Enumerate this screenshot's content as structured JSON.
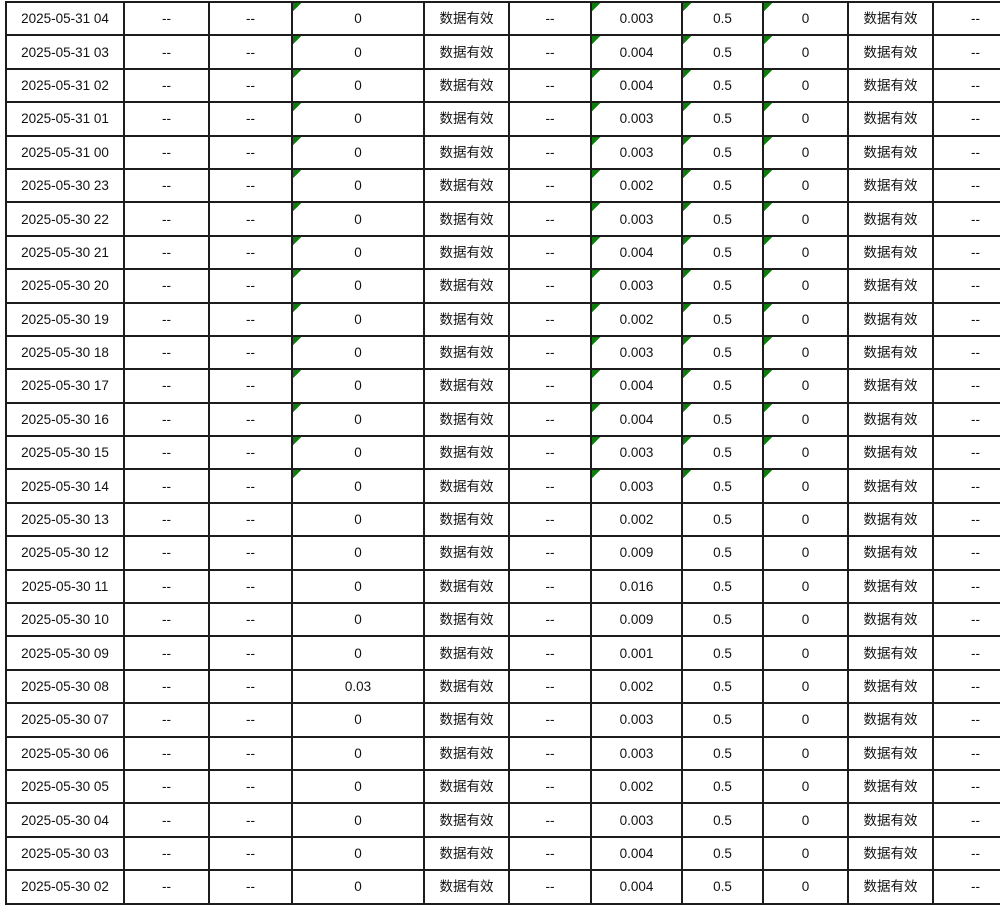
{
  "table": {
    "status_valid_label": "数据有效",
    "empty_placeholder": "--",
    "flag_color": "#0e7d0e",
    "border_color": "#1c1c1c",
    "marked_columns": [
      3,
      6,
      7,
      8
    ],
    "rows": [
      {
        "marked": true,
        "cells": [
          "2025-05-31 04",
          "--",
          "--",
          "0",
          "数据有效",
          "--",
          "0.003",
          "0.5",
          "0",
          "数据有效",
          "--"
        ]
      },
      {
        "marked": true,
        "cells": [
          "2025-05-31 03",
          "--",
          "--",
          "0",
          "数据有效",
          "--",
          "0.004",
          "0.5",
          "0",
          "数据有效",
          "--"
        ]
      },
      {
        "marked": true,
        "cells": [
          "2025-05-31 02",
          "--",
          "--",
          "0",
          "数据有效",
          "--",
          "0.004",
          "0.5",
          "0",
          "数据有效",
          "--"
        ]
      },
      {
        "marked": true,
        "cells": [
          "2025-05-31 01",
          "--",
          "--",
          "0",
          "数据有效",
          "--",
          "0.003",
          "0.5",
          "0",
          "数据有效",
          "--"
        ]
      },
      {
        "marked": true,
        "cells": [
          "2025-05-31 00",
          "--",
          "--",
          "0",
          "数据有效",
          "--",
          "0.003",
          "0.5",
          "0",
          "数据有效",
          "--"
        ]
      },
      {
        "marked": true,
        "cells": [
          "2025-05-30 23",
          "--",
          "--",
          "0",
          "数据有效",
          "--",
          "0.002",
          "0.5",
          "0",
          "数据有效",
          "--"
        ]
      },
      {
        "marked": true,
        "cells": [
          "2025-05-30 22",
          "--",
          "--",
          "0",
          "数据有效",
          "--",
          "0.003",
          "0.5",
          "0",
          "数据有效",
          "--"
        ]
      },
      {
        "marked": true,
        "cells": [
          "2025-05-30 21",
          "--",
          "--",
          "0",
          "数据有效",
          "--",
          "0.004",
          "0.5",
          "0",
          "数据有效",
          "--"
        ]
      },
      {
        "marked": true,
        "cells": [
          "2025-05-30 20",
          "--",
          "--",
          "0",
          "数据有效",
          "--",
          "0.003",
          "0.5",
          "0",
          "数据有效",
          "--"
        ]
      },
      {
        "marked": true,
        "cells": [
          "2025-05-30 19",
          "--",
          "--",
          "0",
          "数据有效",
          "--",
          "0.002",
          "0.5",
          "0",
          "数据有效",
          "--"
        ]
      },
      {
        "marked": true,
        "cells": [
          "2025-05-30 18",
          "--",
          "--",
          "0",
          "数据有效",
          "--",
          "0.003",
          "0.5",
          "0",
          "数据有效",
          "--"
        ]
      },
      {
        "marked": true,
        "cells": [
          "2025-05-30 17",
          "--",
          "--",
          "0",
          "数据有效",
          "--",
          "0.004",
          "0.5",
          "0",
          "数据有效",
          "--"
        ]
      },
      {
        "marked": true,
        "cells": [
          "2025-05-30 16",
          "--",
          "--",
          "0",
          "数据有效",
          "--",
          "0.004",
          "0.5",
          "0",
          "数据有效",
          "--"
        ]
      },
      {
        "marked": true,
        "cells": [
          "2025-05-30 15",
          "--",
          "--",
          "0",
          "数据有效",
          "--",
          "0.003",
          "0.5",
          "0",
          "数据有效",
          "--"
        ]
      },
      {
        "marked": true,
        "cells": [
          "2025-05-30 14",
          "--",
          "--",
          "0",
          "数据有效",
          "--",
          "0.003",
          "0.5",
          "0",
          "数据有效",
          "--"
        ]
      },
      {
        "marked": false,
        "cells": [
          "2025-05-30 13",
          "--",
          "--",
          "0",
          "数据有效",
          "--",
          "0.002",
          "0.5",
          "0",
          "数据有效",
          "--"
        ]
      },
      {
        "marked": false,
        "cells": [
          "2025-05-30 12",
          "--",
          "--",
          "0",
          "数据有效",
          "--",
          "0.009",
          "0.5",
          "0",
          "数据有效",
          "--"
        ]
      },
      {
        "marked": false,
        "cells": [
          "2025-05-30 11",
          "--",
          "--",
          "0",
          "数据有效",
          "--",
          "0.016",
          "0.5",
          "0",
          "数据有效",
          "--"
        ]
      },
      {
        "marked": false,
        "cells": [
          "2025-05-30 10",
          "--",
          "--",
          "0",
          "数据有效",
          "--",
          "0.009",
          "0.5",
          "0",
          "数据有效",
          "--"
        ]
      },
      {
        "marked": false,
        "cells": [
          "2025-05-30 09",
          "--",
          "--",
          "0",
          "数据有效",
          "--",
          "0.001",
          "0.5",
          "0",
          "数据有效",
          "--"
        ]
      },
      {
        "marked": false,
        "cells": [
          "2025-05-30 08",
          "--",
          "--",
          "0.03",
          "数据有效",
          "--",
          "0.002",
          "0.5",
          "0",
          "数据有效",
          "--"
        ]
      },
      {
        "marked": false,
        "cells": [
          "2025-05-30 07",
          "--",
          "--",
          "0",
          "数据有效",
          "--",
          "0.003",
          "0.5",
          "0",
          "数据有效",
          "--"
        ]
      },
      {
        "marked": false,
        "cells": [
          "2025-05-30 06",
          "--",
          "--",
          "0",
          "数据有效",
          "--",
          "0.003",
          "0.5",
          "0",
          "数据有效",
          "--"
        ]
      },
      {
        "marked": false,
        "cells": [
          "2025-05-30 05",
          "--",
          "--",
          "0",
          "数据有效",
          "--",
          "0.002",
          "0.5",
          "0",
          "数据有效",
          "--"
        ]
      },
      {
        "marked": false,
        "cells": [
          "2025-05-30 04",
          "--",
          "--",
          "0",
          "数据有效",
          "--",
          "0.003",
          "0.5",
          "0",
          "数据有效",
          "--"
        ]
      },
      {
        "marked": false,
        "cells": [
          "2025-05-30 03",
          "--",
          "--",
          "0",
          "数据有效",
          "--",
          "0.004",
          "0.5",
          "0",
          "数据有效",
          "--"
        ]
      },
      {
        "marked": false,
        "cells": [
          "2025-05-30 02",
          "--",
          "--",
          "0",
          "数据有效",
          "--",
          "0.004",
          "0.5",
          "0",
          "数据有效",
          "--"
        ]
      }
    ]
  }
}
